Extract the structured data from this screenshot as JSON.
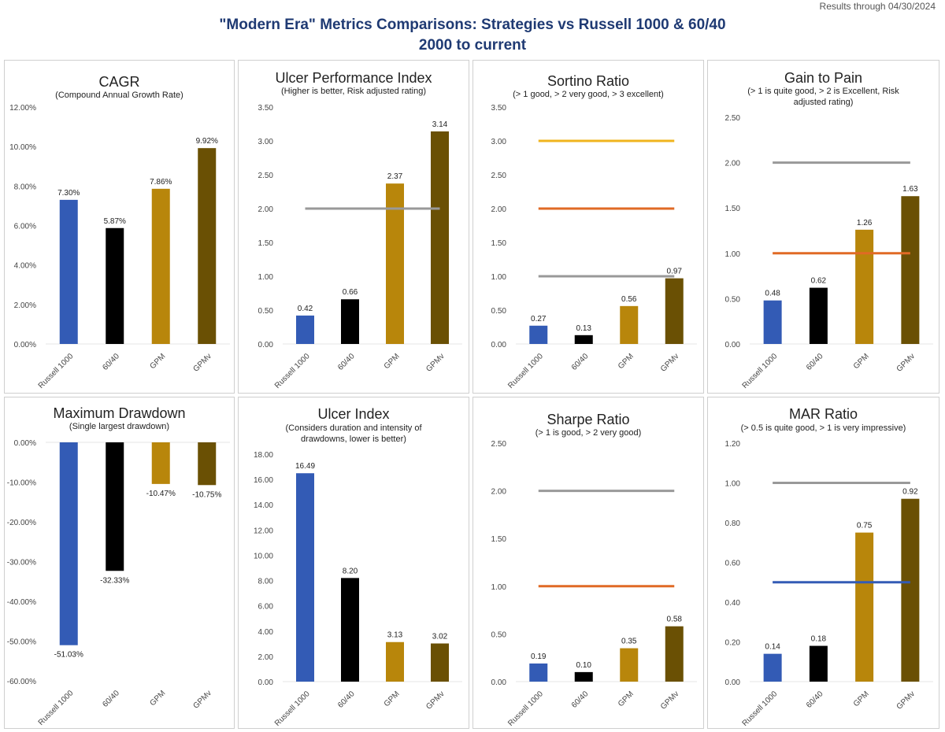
{
  "header": {
    "note": "Results through 04/30/2024",
    "title_line1": "\"Modern Era\" Metrics Comparisons: Strategies vs Russell 1000 & 60/40",
    "title_line2": "2000 to current"
  },
  "colors": {
    "bar_colors": [
      "#335bb5",
      "#000000",
      "#b8860b",
      "#6a5004"
    ],
    "ref_gray": "#999999",
    "ref_orange": "#e06a25",
    "ref_yellow": "#f0b41e",
    "ref_blue": "#335bb5",
    "gridline": "#e6e6e6",
    "tick_text": "#444444"
  },
  "chart_data": [
    {
      "type": "bar",
      "title": "CAGR",
      "subtitle": [
        "(Compound Annual Growth Rate)"
      ],
      "categories": [
        "Russell 1000",
        "60/40",
        "GPM",
        "GPMv"
      ],
      "values": [
        7.3,
        5.87,
        7.86,
        9.92
      ],
      "labels": [
        "7.30%",
        "5.87%",
        "7.86%",
        "9.92%"
      ],
      "yticks": [
        "0.00%",
        "2.00%",
        "4.00%",
        "6.00%",
        "8.00%",
        "10.00%",
        "12.00%"
      ],
      "ylim": [
        0,
        12
      ],
      "ref_lines": []
    },
    {
      "type": "bar",
      "title": "Ulcer Performance Index",
      "subtitle": [
        "(Higher is better, Risk adjusted rating)"
      ],
      "categories": [
        "Russell 1000",
        "60/40",
        "GPM",
        "GPMv"
      ],
      "values": [
        0.42,
        0.66,
        2.37,
        3.14
      ],
      "labels": [
        "0.42",
        "0.66",
        "2.37",
        "3.14"
      ],
      "yticks": [
        "0.00",
        "0.50",
        "1.00",
        "1.50",
        "2.00",
        "2.50",
        "3.00",
        "3.50"
      ],
      "ylim": [
        0,
        3.5
      ],
      "ref_lines": [
        {
          "value": 2,
          "color": "gray"
        }
      ]
    },
    {
      "type": "bar",
      "title": "Sortino Ratio",
      "subtitle": [
        "(> 1 good, > 2 very good, > 3 excellent)"
      ],
      "categories": [
        "Russell 1000",
        "60/40",
        "GPM",
        "GPMv"
      ],
      "values": [
        0.27,
        0.13,
        0.56,
        0.97
      ],
      "labels": [
        "0.27",
        "0.13",
        "0.56",
        "0.97"
      ],
      "yticks": [
        "0.00",
        "0.50",
        "1.00",
        "1.50",
        "2.00",
        "2.50",
        "3.00",
        "3.50"
      ],
      "ylim": [
        0,
        3.5
      ],
      "ref_lines": [
        {
          "value": 3,
          "color": "yellow"
        },
        {
          "value": 2,
          "color": "orange"
        },
        {
          "value": 1,
          "color": "gray"
        }
      ]
    },
    {
      "type": "bar",
      "title": "Gain to Pain",
      "subtitle": [
        "(> 1 is quite good, > 2 is Excellent, Risk",
        "adjusted rating)"
      ],
      "categories": [
        "Russell 1000",
        "60/40",
        "GPM",
        "GPMv"
      ],
      "values": [
        0.48,
        0.62,
        1.26,
        1.63
      ],
      "labels": [
        "0.48",
        "0.62",
        "1.26",
        "1.63"
      ],
      "yticks": [
        "0.00",
        "0.50",
        "1.00",
        "1.50",
        "2.00",
        "2.50"
      ],
      "ylim": [
        0,
        2.5
      ],
      "ref_lines": [
        {
          "value": 2,
          "color": "gray"
        },
        {
          "value": 1,
          "color": "orange"
        }
      ]
    },
    {
      "type": "bar",
      "title": "Maximum Drawdown",
      "subtitle": [
        "(Single largest drawdown)"
      ],
      "categories": [
        "Russell 1000",
        "60/40",
        "GPM",
        "GPMv"
      ],
      "values": [
        -51.03,
        -32.33,
        -10.47,
        -10.75
      ],
      "labels": [
        "-51.03%",
        "-32.33%",
        "-10.47%",
        "-10.75%"
      ],
      "yticks": [
        "-60.00%",
        "-50.00%",
        "-40.00%",
        "-30.00%",
        "-20.00%",
        "-10.00%",
        "0.00%"
      ],
      "ylim": [
        -60,
        0
      ],
      "ref_lines": []
    },
    {
      "type": "bar",
      "title": "Ulcer Index",
      "subtitle": [
        "(Considers duration and intensity of",
        "drawdowns, lower is better)"
      ],
      "categories": [
        "Russell 1000",
        "60/40",
        "GPM",
        "GPMv"
      ],
      "values": [
        16.49,
        8.2,
        3.13,
        3.02
      ],
      "labels": [
        "16.49",
        "8.20",
        "3.13",
        "3.02"
      ],
      "yticks": [
        "0.00",
        "2.00",
        "4.00",
        "6.00",
        "8.00",
        "10.00",
        "12.00",
        "14.00",
        "16.00",
        "18.00"
      ],
      "ylim": [
        0,
        18
      ],
      "ref_lines": []
    },
    {
      "type": "bar",
      "title": "Sharpe Ratio",
      "subtitle": [
        "(> 1 is good, > 2 very good)"
      ],
      "categories": [
        "Russell 1000",
        "60/40",
        "GPM",
        "GPMv"
      ],
      "values": [
        0.19,
        0.1,
        0.35,
        0.58
      ],
      "labels": [
        "0.19",
        "0.10",
        "0.35",
        "0.58"
      ],
      "yticks": [
        "0.00",
        "0.50",
        "1.00",
        "1.50",
        "2.00",
        "2.50"
      ],
      "ylim": [
        0,
        2.5
      ],
      "ref_lines": [
        {
          "value": 2,
          "color": "gray"
        },
        {
          "value": 1,
          "color": "orange"
        }
      ]
    },
    {
      "type": "bar",
      "title": "MAR Ratio",
      "subtitle": [
        "(> 0.5 is quite good, > 1 is very impressive)"
      ],
      "categories": [
        "Russell 1000",
        "60/40",
        "GPM",
        "GPMv"
      ],
      "values": [
        0.14,
        0.18,
        0.75,
        0.92
      ],
      "labels": [
        "0.14",
        "0.18",
        "0.75",
        "0.92"
      ],
      "yticks": [
        "0.00",
        "0.20",
        "0.40",
        "0.60",
        "0.80",
        "1.00",
        "1.20"
      ],
      "ylim": [
        0,
        1.2
      ],
      "ref_lines": [
        {
          "value": 1,
          "color": "gray"
        },
        {
          "value": 0.5,
          "color": "blue"
        }
      ]
    }
  ]
}
